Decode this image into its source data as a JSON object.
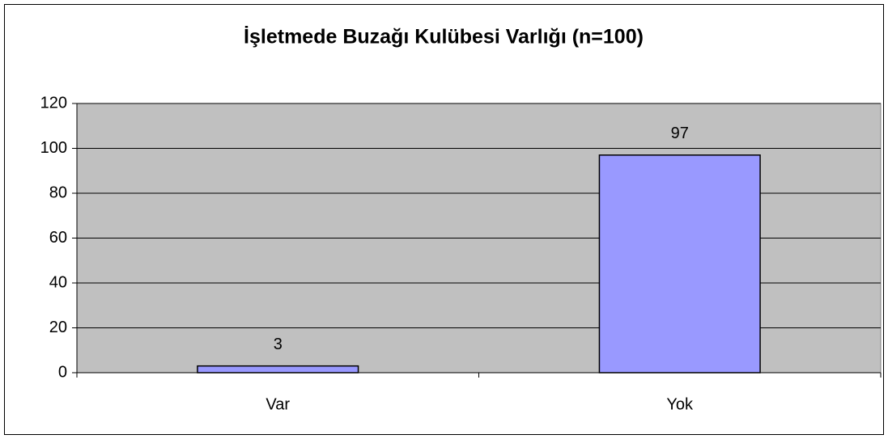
{
  "chart_data": {
    "type": "bar",
    "title": "İşletmede Buzağı Kulübesi Varlığı (n=100)",
    "categories": [
      "Var",
      "Yok"
    ],
    "values": [
      3,
      97
    ],
    "color": "#9999ff",
    "ylim": [
      0,
      120
    ],
    "yticks": [
      0,
      20,
      40,
      60,
      80,
      100,
      120
    ],
    "grid": true
  }
}
